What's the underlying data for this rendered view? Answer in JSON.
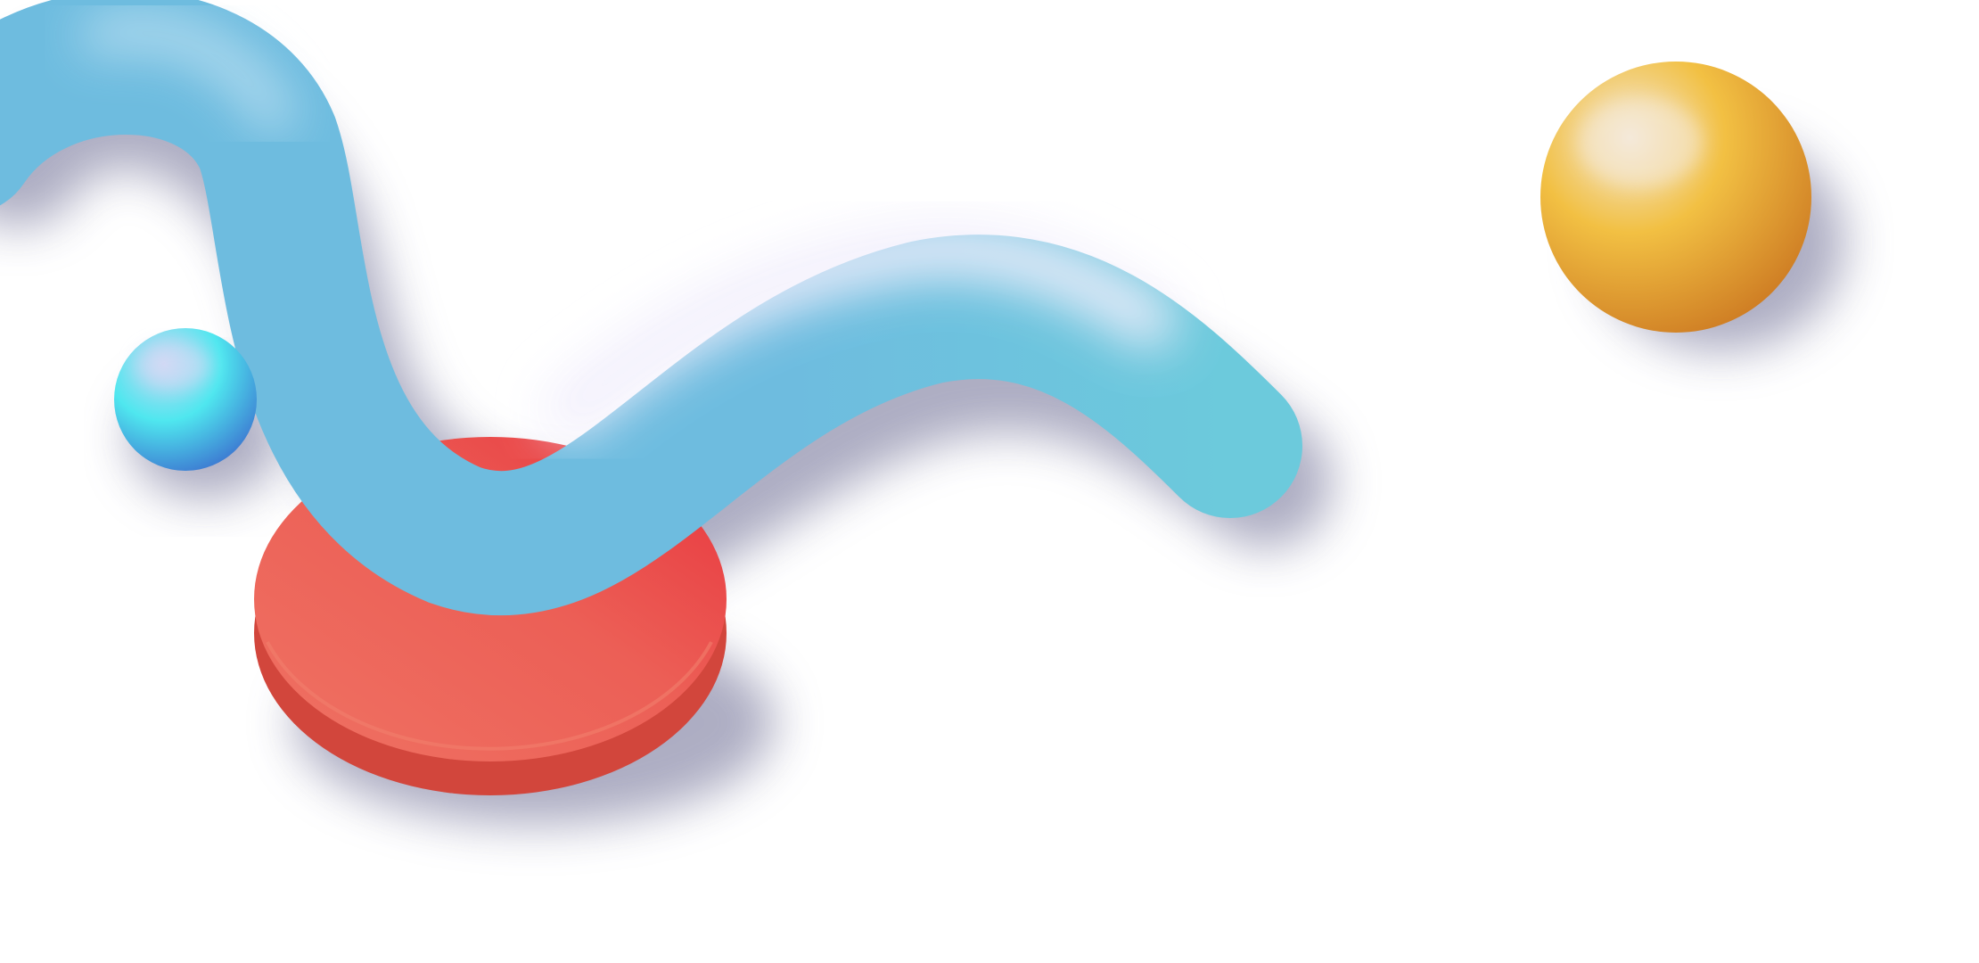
{
  "scene": {
    "background_color": "#ffffff",
    "shadow_color": "#6b6a92",
    "shapes": [
      {
        "name": "tube-squiggle",
        "kind": "tube",
        "colors": {
          "main": "#6ebcdf",
          "highlight": "#f1eefc",
          "end": "#6ccadc"
        }
      },
      {
        "name": "red-disc",
        "kind": "disc",
        "colors": {
          "top_light": "#ef7263",
          "top_dark": "#e8343d",
          "side": "#d2463c"
        }
      },
      {
        "name": "cyan-sphere",
        "kind": "sphere",
        "colors": {
          "highlight": "#c8d4f2",
          "mid": "#4fe7ef",
          "dark": "#3d7bd2"
        }
      },
      {
        "name": "gold-sphere",
        "kind": "sphere",
        "colors": {
          "highlight": "#f3e7d4",
          "mid": "#f2c043",
          "dark": "#cf7e24"
        }
      }
    ]
  }
}
